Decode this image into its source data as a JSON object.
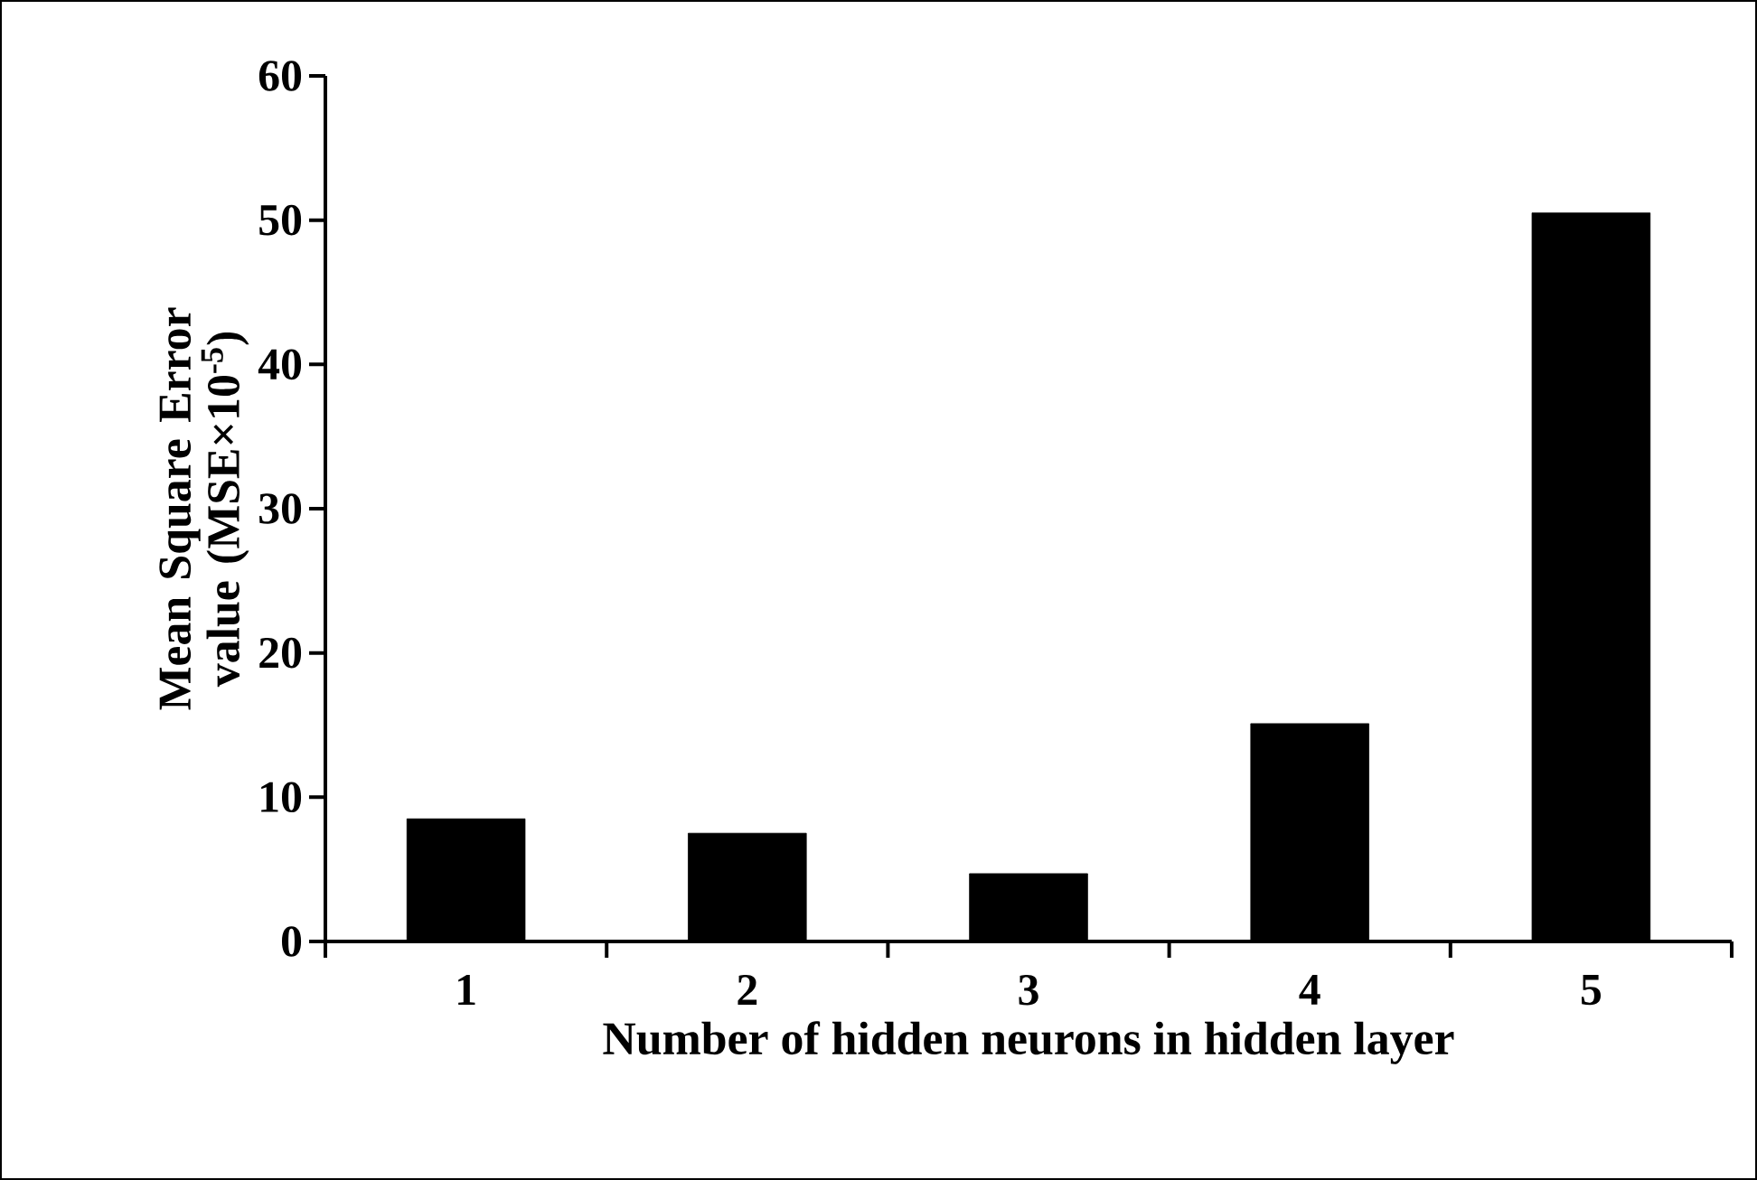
{
  "chart_data": {
    "type": "bar",
    "xlabel": "Number of hidden neurons in hidden layer",
    "ylabel": "Mean Square Error value (MSE×10$^{-5}$)",
    "categories": [
      "1",
      "2",
      "3",
      "4",
      "5"
    ],
    "values": [
      8.5,
      7.5,
      4.7,
      15.1,
      50.5
    ],
    "color": "#000000",
    "ylim": [
      0,
      60
    ],
    "yticks": [
      0,
      10,
      20,
      30,
      40,
      50,
      60
    ],
    "grid": false
  }
}
